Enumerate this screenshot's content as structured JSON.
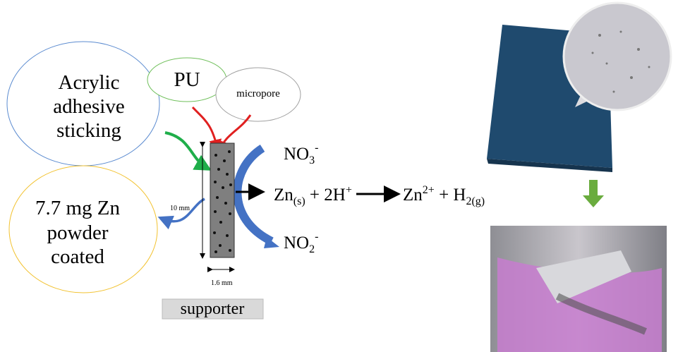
{
  "bubbles": {
    "adhesive": [
      "Acrylic",
      "adhesive",
      "sticking"
    ],
    "pu": "PU",
    "micropore": "micropore",
    "zinc": [
      "7.7 mg Zn",
      "powder",
      "coated"
    ]
  },
  "dimensions": {
    "length": "10 mm",
    "width": "1.6 mm"
  },
  "support_label": "supporter",
  "no3": {
    "base": "NO",
    "sub": "3",
    "sup": "-"
  },
  "no2": {
    "base": "NO",
    "sub": "2",
    "sup": "-"
  },
  "equation": {
    "zn": "Zn",
    "zn_state": "(s)",
    "plus1": " + 2H",
    "h_charge": "+",
    "zn_ion": "Zn",
    "zn_charge": "2+",
    "plus2": " + H",
    "h2_state": "2(g)"
  }
}
